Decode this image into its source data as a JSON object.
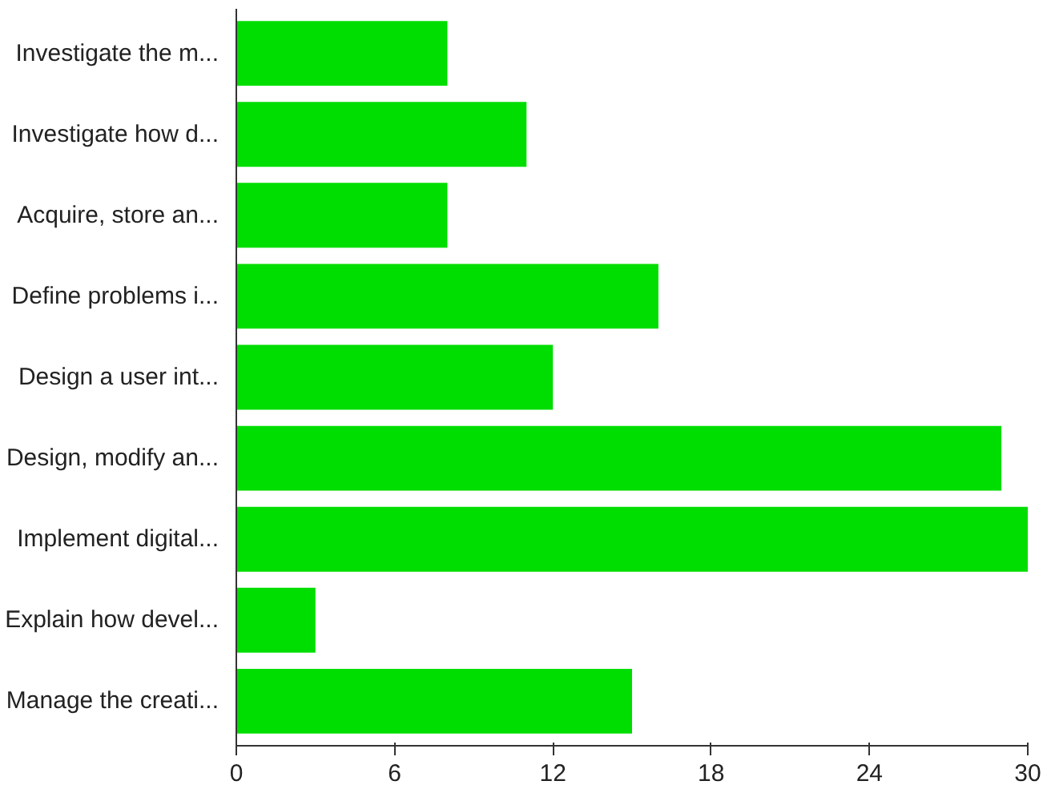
{
  "chart_data": {
    "type": "bar",
    "orientation": "horizontal",
    "categories": [
      "Investigate the m...",
      "Investigate how d...",
      "Acquire, store an...",
      "Define problems i...",
      "Design a user int...",
      "Design, modify an...",
      "Implement digital...",
      "Explain how devel...",
      "Manage the creati..."
    ],
    "values": [
      8,
      11,
      8,
      16,
      12,
      29,
      30,
      3,
      15
    ],
    "color": "#00dd00",
    "xlim": [
      0,
      30
    ],
    "xticks": [
      0,
      6,
      12,
      18,
      24,
      30
    ],
    "grid": false
  }
}
